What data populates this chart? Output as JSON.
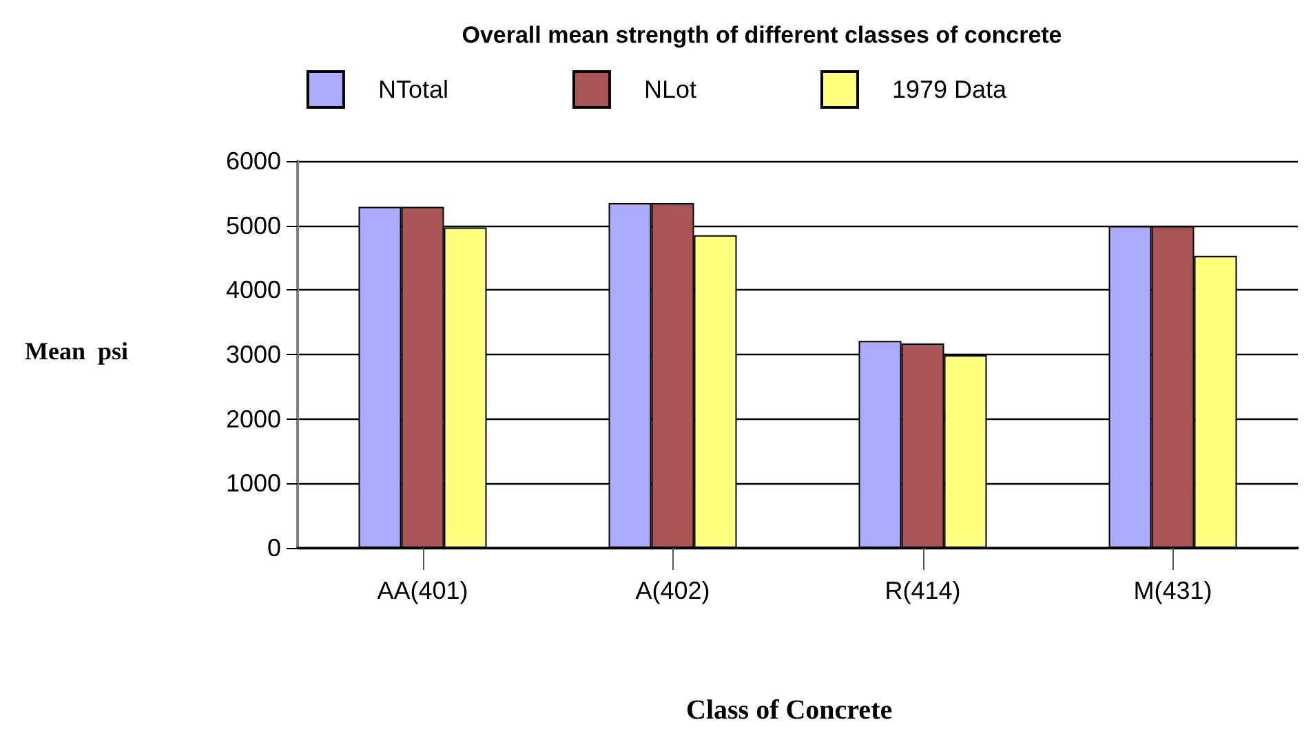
{
  "chart_data": {
    "type": "bar",
    "title": "Overall mean strength of different classes of concrete",
    "xlabel": "Class of Concrete",
    "ylabel": "Mean  psi",
    "categories": [
      "AA(401)",
      "A(402)",
      "R(414)",
      "M(431)"
    ],
    "series": [
      {
        "name": "NTotal",
        "color": "#aaaaff",
        "values": [
          5290,
          5350,
          3210,
          4990
        ]
      },
      {
        "name": "NLot",
        "color": "#aa5555",
        "values": [
          5290,
          5350,
          3170,
          4990
        ]
      },
      {
        "name": "1979 Data",
        "color": "#ffff80",
        "values": [
          4970,
          4850,
          2990,
          4530
        ]
      }
    ],
    "ylim": [
      0,
      6000
    ],
    "yticks": [
      0,
      1000,
      2000,
      3000,
      4000,
      5000,
      6000
    ],
    "grid": "y",
    "legend": "top"
  }
}
